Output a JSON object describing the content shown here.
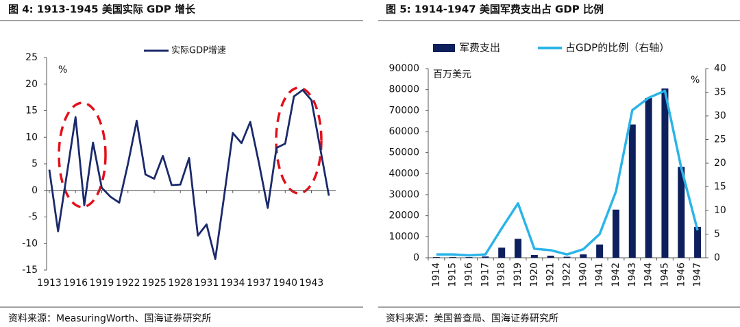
{
  "chart_data": [
    {
      "type": "line",
      "title": "图 4:  1913-1945  美国实际 GDP 增长",
      "source": "资料来源：MeasuringWorth、国海证券研究所",
      "y_unit": "%",
      "x": [
        1913,
        1914,
        1915,
        1916,
        1917,
        1918,
        1919,
        1920,
        1921,
        1922,
        1923,
        1924,
        1925,
        1926,
        1927,
        1928,
        1929,
        1930,
        1931,
        1932,
        1933,
        1934,
        1935,
        1936,
        1937,
        1938,
        1939,
        1940,
        1941,
        1942,
        1943,
        1944,
        1945
      ],
      "series": [
        {
          "name": "实际GDP增速",
          "color": "#1b2a6b",
          "values": [
            3.9,
            -7.7,
            3.0,
            13.8,
            -2.8,
            9.0,
            0.5,
            -1.2,
            -2.3,
            5.0,
            13.1,
            3.0,
            2.2,
            6.5,
            1.0,
            1.1,
            6.1,
            -8.5,
            -6.4,
            -12.9,
            -1.2,
            10.8,
            8.9,
            12.9,
            5.1,
            -3.3,
            8.0,
            8.8,
            17.7,
            18.9,
            17.0,
            8.0,
            -1.0
          ]
        }
      ],
      "xlim": [
        1913,
        1945
      ],
      "xticks": [
        1913,
        1916,
        1919,
        1922,
        1925,
        1928,
        1931,
        1934,
        1937,
        1940,
        1943
      ],
      "ylim": [
        -15,
        25
      ],
      "yticks": [
        -15,
        -10,
        -5,
        0,
        5,
        10,
        15,
        20,
        25
      ]
    },
    {
      "type": "combo",
      "title": "图 5:  1914-1947  美国军费支出占 GDP 比例",
      "source": "资料来源：美国普查局、国海证券研究所",
      "y_unit": "百万美元",
      "y2_unit": "%",
      "categories": [
        "1914",
        "1915",
        "1916",
        "1917",
        "1918",
        "1919",
        "1920",
        "1921",
        "1922",
        "1940",
        "1941",
        "1942",
        "1943",
        "1944",
        "1945",
        "1946",
        "1947"
      ],
      "series": [
        {
          "name": "军费支出",
          "kind": "bar",
          "color": "#0d1f5c",
          "values": [
            300,
            300,
            300,
            600,
            4800,
            9000,
            1300,
            1000,
            500,
            1600,
            6300,
            22900,
            63400,
            76000,
            80500,
            43200,
            14700
          ]
        },
        {
          "name": "占GDP的比例（右轴）",
          "kind": "line",
          "axis": "y2",
          "color": "#2ab4e8",
          "values": [
            0.7,
            0.7,
            0.5,
            0.7,
            6.2,
            11.5,
            1.9,
            1.6,
            0.7,
            1.8,
            5.0,
            14.0,
            31.2,
            33.8,
            35.3,
            19.0,
            5.8
          ]
        }
      ],
      "ylim": [
        0,
        90000
      ],
      "yticks": [
        0,
        10000,
        20000,
        30000,
        40000,
        50000,
        60000,
        70000,
        80000,
        90000
      ],
      "y2lim": [
        0,
        40
      ],
      "y2ticks": [
        0,
        5,
        10,
        15,
        20,
        25,
        30,
        35,
        40
      ]
    }
  ]
}
